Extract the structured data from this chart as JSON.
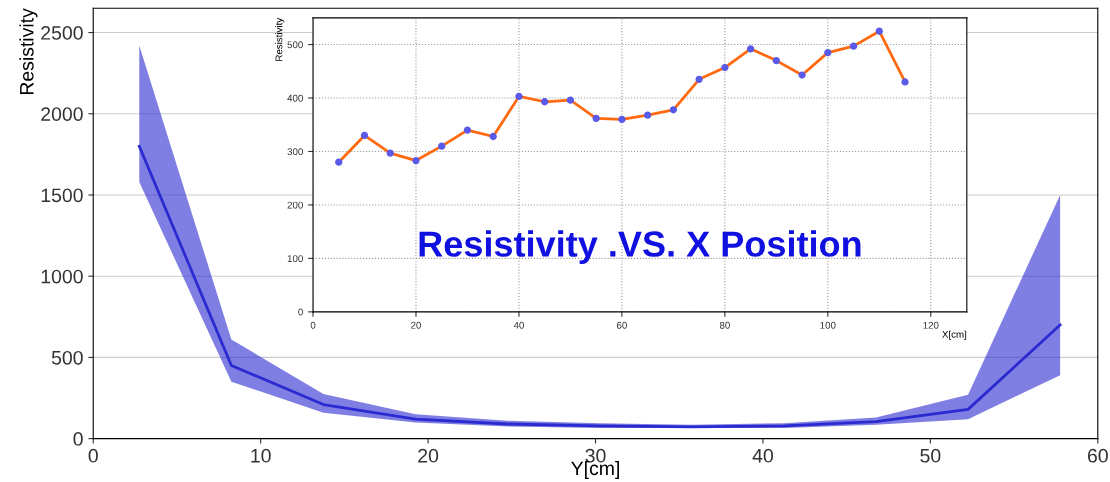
{
  "chart_data": [
    {
      "type": "line",
      "xlabel": "Y[cm]",
      "ylabel": "Resistivity",
      "x": [
        2.75,
        8.25,
        13.75,
        19.25,
        24.75,
        30.25,
        35.75,
        41.25,
        46.75,
        52.25,
        57.75
      ],
      "xlim": [
        0,
        60
      ],
      "ylim": [
        0,
        2650
      ],
      "xticks": [
        0,
        10,
        20,
        30,
        40,
        50,
        60
      ],
      "yticks": [
        0,
        500,
        1000,
        1500,
        2000,
        2500
      ],
      "grid": "y",
      "marker": "none",
      "line_style": "solid",
      "series": [
        {
          "color": "#2a2ad0",
          "values": [
            1800,
            450,
            210,
            120,
            90,
            78,
            72,
            78,
            105,
            180,
            700
          ],
          "lower": [
            1580,
            350,
            160,
            100,
            75,
            65,
            65,
            65,
            85,
            120,
            390
          ],
          "upper": [
            2420,
            610,
            275,
            150,
            110,
            95,
            85,
            95,
            130,
            270,
            1500
          ]
        }
      ]
    },
    {
      "type": "line",
      "xlabel": "X[cm]",
      "ylabel": "Resistivity",
      "annotations": [
        "Resistivity .VS. X Position"
      ],
      "x": [
        5,
        10,
        15,
        20,
        25,
        30,
        35,
        40,
        45,
        50,
        55,
        60,
        65,
        70,
        75,
        80,
        85,
        90,
        95,
        100,
        105,
        110,
        115
      ],
      "xlim": [
        0,
        127
      ],
      "ylim": [
        0,
        550
      ],
      "xticks": [
        0,
        20,
        40,
        60,
        80,
        100,
        120
      ],
      "yticks": [
        0,
        100,
        200,
        300,
        400,
        500
      ],
      "grid": true,
      "marker": "circle",
      "line_style": "solid",
      "series": [
        {
          "color": "#ff6a10",
          "values": [
            280,
            330,
            297,
            283,
            310,
            340,
            328,
            403,
            393,
            396,
            362,
            360,
            368,
            378,
            435,
            457,
            492,
            470,
            443,
            485,
            497,
            525,
            430
          ]
        }
      ]
    }
  ]
}
